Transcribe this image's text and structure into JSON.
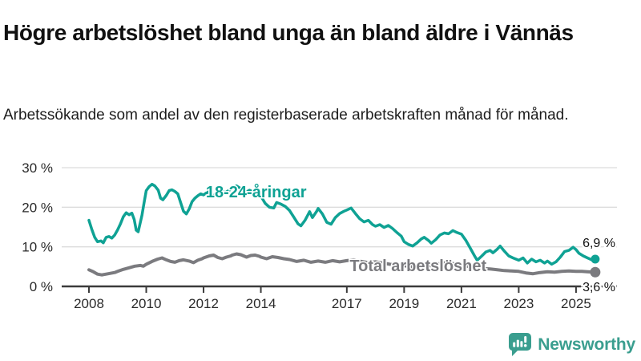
{
  "header": {
    "title": "Högre arbetslöshet bland unga än bland äldre i Vännäs",
    "subtitle": "Arbetssökande som andel av den registerbaserade arbetskraften månad för månad."
  },
  "footer": {
    "brand": "Newsworthy",
    "logo_icon": "newsworthy-speech-bubble-bar-chart-icon"
  },
  "colors": {
    "youth": "#0fa294",
    "total": "#7b7b7f",
    "grid": "#dcdcdc",
    "axis": "#3b3b3b",
    "tick_text": "#2b2b2b",
    "value_text": "#111111",
    "brand": "#3a9e8f",
    "background": "#ffffff"
  },
  "chart_data": {
    "type": "line",
    "title": "Högre arbetslöshet bland unga än bland äldre i Vännäs",
    "xlabel": "",
    "ylabel": "Arbetssökande som andel av den registerbaserade arbetskraften",
    "xlim": [
      2007.8,
      2025.9
    ],
    "ylim": [
      0,
      30
    ],
    "grid": true,
    "legend_position": "inline-labels",
    "y_ticks": [
      {
        "value": 30,
        "label": "30 %"
      },
      {
        "value": 20,
        "label": "20 %"
      },
      {
        "value": 10,
        "label": "10 %"
      },
      {
        "value": 0,
        "label": "0 %"
      }
    ],
    "x_ticks": [
      {
        "value": 2008,
        "label": "2008"
      },
      {
        "value": 2010,
        "label": "2010"
      },
      {
        "value": 2012,
        "label": "2012"
      },
      {
        "value": 2014,
        "label": "2014"
      },
      {
        "value": 2017,
        "label": "2017"
      },
      {
        "value": 2019,
        "label": "2019"
      },
      {
        "value": 2021,
        "label": "2021"
      },
      {
        "value": 2023,
        "label": "2023"
      },
      {
        "value": 2025,
        "label": "2025"
      }
    ],
    "series": [
      {
        "id": "youth",
        "name": "18-24-åringar",
        "color": "#0fa294",
        "line_width": 3.5,
        "end_dot_radius": 5.5,
        "end_value_label": "6,9 %",
        "label_anchor": {
          "x": 2012.08,
          "y": 22.5
        },
        "points": [
          [
            2008.0,
            16.7
          ],
          [
            2008.1,
            14.4
          ],
          [
            2008.2,
            12.4
          ],
          [
            2008.3,
            11.3
          ],
          [
            2008.42,
            11.5
          ],
          [
            2008.5,
            11.0
          ],
          [
            2008.6,
            12.4
          ],
          [
            2008.7,
            12.6
          ],
          [
            2008.8,
            12.2
          ],
          [
            2008.9,
            13.0
          ],
          [
            2009.0,
            14.3
          ],
          [
            2009.1,
            15.8
          ],
          [
            2009.2,
            17.6
          ],
          [
            2009.3,
            18.6
          ],
          [
            2009.4,
            18.1
          ],
          [
            2009.5,
            18.5
          ],
          [
            2009.58,
            16.9
          ],
          [
            2009.65,
            14.2
          ],
          [
            2009.72,
            13.8
          ],
          [
            2009.85,
            18.0
          ],
          [
            2009.92,
            21.0
          ],
          [
            2010.0,
            24.2
          ],
          [
            2010.1,
            25.2
          ],
          [
            2010.2,
            25.8
          ],
          [
            2010.3,
            25.4
          ],
          [
            2010.42,
            24.3
          ],
          [
            2010.5,
            22.3
          ],
          [
            2010.58,
            21.9
          ],
          [
            2010.7,
            23.0
          ],
          [
            2010.8,
            24.2
          ],
          [
            2010.9,
            24.4
          ],
          [
            2011.0,
            24.0
          ],
          [
            2011.1,
            23.4
          ],
          [
            2011.2,
            21.2
          ],
          [
            2011.3,
            19.0
          ],
          [
            2011.4,
            18.3
          ],
          [
            2011.5,
            19.6
          ],
          [
            2011.6,
            21.4
          ],
          [
            2011.7,
            22.3
          ],
          [
            2011.8,
            22.9
          ],
          [
            2011.9,
            23.4
          ],
          [
            2012.0,
            23.1
          ],
          [
            2012.15,
            23.9
          ],
          [
            2012.3,
            22.7
          ],
          [
            2012.45,
            23.4
          ],
          [
            2012.6,
            24.2
          ],
          [
            2012.75,
            23.7
          ],
          [
            2012.9,
            24.3
          ],
          [
            2013.0,
            24.9
          ],
          [
            2013.15,
            25.4
          ],
          [
            2013.3,
            24.7
          ],
          [
            2013.45,
            23.7
          ],
          [
            2013.6,
            24.3
          ],
          [
            2013.75,
            23.8
          ],
          [
            2013.9,
            23.3
          ],
          [
            2014.0,
            22.8
          ],
          [
            2014.15,
            21.0
          ],
          [
            2014.3,
            20.0
          ],
          [
            2014.45,
            19.8
          ],
          [
            2014.55,
            21.2
          ],
          [
            2014.7,
            20.8
          ],
          [
            2014.85,
            20.2
          ],
          [
            2015.0,
            19.2
          ],
          [
            2015.15,
            17.5
          ],
          [
            2015.3,
            15.8
          ],
          [
            2015.4,
            15.3
          ],
          [
            2015.55,
            16.8
          ],
          [
            2015.7,
            18.9
          ],
          [
            2015.8,
            17.4
          ],
          [
            2015.95,
            19.0
          ],
          [
            2016.0,
            19.7
          ],
          [
            2016.15,
            18.3
          ],
          [
            2016.3,
            16.2
          ],
          [
            2016.45,
            15.7
          ],
          [
            2016.6,
            17.4
          ],
          [
            2016.75,
            18.4
          ],
          [
            2016.9,
            19.0
          ],
          [
            2017.0,
            19.3
          ],
          [
            2017.15,
            19.8
          ],
          [
            2017.3,
            18.4
          ],
          [
            2017.45,
            17.1
          ],
          [
            2017.6,
            16.3
          ],
          [
            2017.75,
            16.7
          ],
          [
            2017.9,
            15.6
          ],
          [
            2018.0,
            15.2
          ],
          [
            2018.15,
            15.6
          ],
          [
            2018.3,
            14.9
          ],
          [
            2018.45,
            15.4
          ],
          [
            2018.6,
            14.6
          ],
          [
            2018.75,
            13.6
          ],
          [
            2018.9,
            12.7
          ],
          [
            2019.0,
            11.3
          ],
          [
            2019.15,
            10.6
          ],
          [
            2019.3,
            10.2
          ],
          [
            2019.45,
            11.0
          ],
          [
            2019.6,
            12.0
          ],
          [
            2019.7,
            12.4
          ],
          [
            2019.85,
            11.6
          ],
          [
            2019.95,
            10.9
          ],
          [
            2020.1,
            11.8
          ],
          [
            2020.25,
            13.0
          ],
          [
            2020.4,
            13.5
          ],
          [
            2020.55,
            13.3
          ],
          [
            2020.7,
            14.1
          ],
          [
            2020.85,
            13.6
          ],
          [
            2021.0,
            13.2
          ],
          [
            2021.15,
            11.7
          ],
          [
            2021.3,
            9.8
          ],
          [
            2021.45,
            7.8
          ],
          [
            2021.55,
            6.6
          ],
          [
            2021.7,
            7.6
          ],
          [
            2021.85,
            8.7
          ],
          [
            2022.0,
            9.1
          ],
          [
            2022.1,
            8.5
          ],
          [
            2022.25,
            9.4
          ],
          [
            2022.35,
            10.2
          ],
          [
            2022.5,
            8.9
          ],
          [
            2022.65,
            7.7
          ],
          [
            2022.8,
            7.2
          ],
          [
            2023.0,
            6.6
          ],
          [
            2023.15,
            7.2
          ],
          [
            2023.3,
            5.9
          ],
          [
            2023.45,
            6.9
          ],
          [
            2023.6,
            6.2
          ],
          [
            2023.75,
            6.6
          ],
          [
            2023.9,
            5.9
          ],
          [
            2024.0,
            6.4
          ],
          [
            2024.15,
            5.6
          ],
          [
            2024.3,
            6.2
          ],
          [
            2024.45,
            7.4
          ],
          [
            2024.6,
            8.8
          ],
          [
            2024.75,
            9.1
          ],
          [
            2024.9,
            9.9
          ],
          [
            2025.0,
            9.3
          ],
          [
            2025.1,
            8.4
          ],
          [
            2025.25,
            7.7
          ],
          [
            2025.4,
            7.2
          ],
          [
            2025.55,
            6.7
          ],
          [
            2025.67,
            6.9
          ]
        ]
      },
      {
        "id": "total",
        "name": "Total arbetslöshet",
        "color": "#7b7b7f",
        "line_width": 4,
        "end_dot_radius": 6.5,
        "end_value_label": "3,6 %",
        "label_anchor": {
          "x": 2017.1,
          "y": 3.9
        },
        "points": [
          [
            2008.0,
            4.2
          ],
          [
            2008.15,
            3.7
          ],
          [
            2008.3,
            3.1
          ],
          [
            2008.45,
            2.9
          ],
          [
            2008.6,
            3.1
          ],
          [
            2008.75,
            3.3
          ],
          [
            2008.9,
            3.5
          ],
          [
            2009.0,
            3.8
          ],
          [
            2009.2,
            4.3
          ],
          [
            2009.4,
            4.7
          ],
          [
            2009.6,
            5.1
          ],
          [
            2009.8,
            5.3
          ],
          [
            2009.9,
            5.1
          ],
          [
            2010.0,
            5.6
          ],
          [
            2010.2,
            6.3
          ],
          [
            2010.4,
            6.9
          ],
          [
            2010.55,
            7.2
          ],
          [
            2010.7,
            6.7
          ],
          [
            2010.85,
            6.3
          ],
          [
            2011.0,
            6.1
          ],
          [
            2011.15,
            6.5
          ],
          [
            2011.3,
            6.7
          ],
          [
            2011.5,
            6.4
          ],
          [
            2011.65,
            6.0
          ],
          [
            2011.8,
            6.6
          ],
          [
            2011.95,
            7.0
          ],
          [
            2012.0,
            7.2
          ],
          [
            2012.2,
            7.7
          ],
          [
            2012.35,
            7.9
          ],
          [
            2012.5,
            7.3
          ],
          [
            2012.65,
            7.0
          ],
          [
            2012.8,
            7.4
          ],
          [
            2012.95,
            7.7
          ],
          [
            2013.0,
            7.9
          ],
          [
            2013.15,
            8.2
          ],
          [
            2013.3,
            8.0
          ],
          [
            2013.5,
            7.4
          ],
          [
            2013.65,
            7.8
          ],
          [
            2013.8,
            7.9
          ],
          [
            2013.95,
            7.6
          ],
          [
            2014.0,
            7.4
          ],
          [
            2014.2,
            7.0
          ],
          [
            2014.4,
            7.5
          ],
          [
            2014.6,
            7.3
          ],
          [
            2014.8,
            7.0
          ],
          [
            2015.0,
            6.8
          ],
          [
            2015.25,
            6.3
          ],
          [
            2015.5,
            6.6
          ],
          [
            2015.75,
            6.1
          ],
          [
            2016.0,
            6.4
          ],
          [
            2016.25,
            6.1
          ],
          [
            2016.5,
            6.5
          ],
          [
            2016.75,
            6.2
          ],
          [
            2017.0,
            6.5
          ],
          [
            2017.25,
            6.7
          ],
          [
            2017.5,
            6.3
          ],
          [
            2017.75,
            6.0
          ],
          [
            2018.0,
            6.2
          ],
          [
            2018.25,
            5.9
          ],
          [
            2018.5,
            5.6
          ],
          [
            2018.75,
            5.4
          ],
          [
            2019.0,
            5.2
          ],
          [
            2019.25,
            5.0
          ],
          [
            2019.5,
            5.3
          ],
          [
            2019.75,
            5.1
          ],
          [
            2020.0,
            5.3
          ],
          [
            2020.25,
            5.8
          ],
          [
            2020.5,
            6.0
          ],
          [
            2020.75,
            5.7
          ],
          [
            2021.0,
            5.4
          ],
          [
            2021.25,
            5.0
          ],
          [
            2021.5,
            4.7
          ],
          [
            2021.75,
            4.5
          ],
          [
            2022.0,
            4.4
          ],
          [
            2022.25,
            4.2
          ],
          [
            2022.5,
            4.0
          ],
          [
            2022.75,
            3.9
          ],
          [
            2023.0,
            3.8
          ],
          [
            2023.25,
            3.4
          ],
          [
            2023.5,
            3.2
          ],
          [
            2023.75,
            3.5
          ],
          [
            2024.0,
            3.7
          ],
          [
            2024.25,
            3.6
          ],
          [
            2024.5,
            3.8
          ],
          [
            2024.75,
            3.9
          ],
          [
            2025.0,
            3.8
          ],
          [
            2025.2,
            3.8
          ],
          [
            2025.4,
            3.7
          ],
          [
            2025.67,
            3.6
          ]
        ]
      }
    ]
  }
}
